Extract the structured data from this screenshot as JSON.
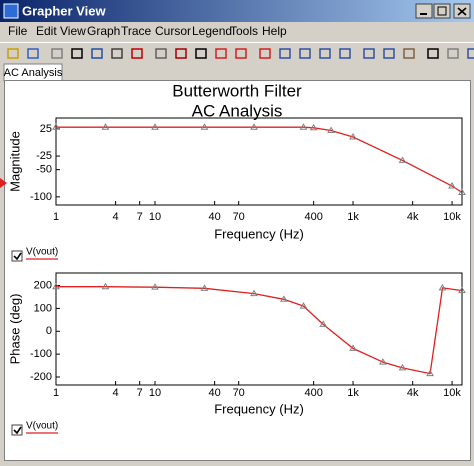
{
  "window": {
    "title": "Grapher View",
    "menu": [
      "File",
      "Edit",
      "View",
      "Graph",
      "Trace",
      "Cursor",
      "Legend",
      "Tools",
      "Help"
    ],
    "tab": "AC Analysis"
  },
  "chart_data": [
    {
      "type": "line",
      "title": "Butterworth Filter",
      "subtitle": "AC Analysis",
      "x_label": "Frequency (Hz)",
      "y_label": "Magnitude",
      "xscale": "log",
      "x": [
        1,
        3.16,
        10,
        31.6,
        100,
        316,
        400,
        600,
        1000,
        3160,
        10000,
        12600
      ],
      "series": [
        {
          "name": "V(vout)",
          "color": "#e02020",
          "values": [
            28,
            28,
            28,
            28,
            28,
            28,
            27,
            22,
            10,
            -33,
            -80,
            -92
          ]
        }
      ],
      "xlim": [
        1,
        12600
      ],
      "ylim": [
        -115,
        45
      ],
      "xticks": [
        1,
        4,
        7,
        10,
        40,
        70,
        400,
        {
          "value": 1000,
          "label": "1k"
        },
        {
          "value": 4000,
          "label": "4k"
        },
        {
          "value": 10000,
          "label": "10k"
        }
      ],
      "yticks": [
        25,
        -25,
        -50,
        -100
      ]
    },
    {
      "type": "line",
      "x_label": "Frequency (Hz)",
      "y_label": "Phase (deg)",
      "xscale": "log",
      "x": [
        1,
        3.16,
        10,
        31.6,
        100,
        200,
        316,
        500,
        1000,
        2000,
        3160,
        6000,
        8000,
        12600
      ],
      "series": [
        {
          "name": "V(vout)",
          "color": "#e02020",
          "values": [
            195,
            195,
            193,
            188,
            165,
            140,
            110,
            30,
            -75,
            -135,
            -160,
            -185,
            190,
            178
          ]
        }
      ],
      "xlim": [
        1,
        12600
      ],
      "ylim": [
        -235,
        255
      ],
      "xticks": [
        1,
        4,
        7,
        10,
        40,
        70,
        400,
        {
          "value": 1000,
          "label": "1k"
        },
        {
          "value": 4000,
          "label": "4k"
        },
        {
          "value": 10000,
          "label": "10k"
        }
      ],
      "yticks": [
        200,
        100,
        0,
        -100,
        -200
      ]
    }
  ]
}
